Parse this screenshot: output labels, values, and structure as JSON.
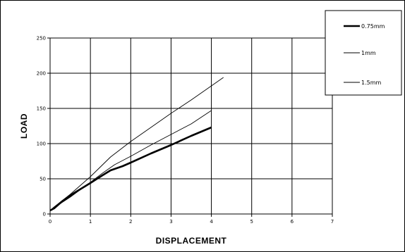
{
  "chart_data": {
    "type": "line",
    "title": "",
    "xlabel": "DISPLACEMENT",
    "ylabel": "LOAD",
    "xlim": [
      0,
      7
    ],
    "ylim": [
      0,
      250
    ],
    "x_ticks": [
      "0",
      "1",
      "2",
      "3",
      "4",
      "5",
      "6",
      "7"
    ],
    "y_ticks": [
      "0",
      "50",
      "100",
      "150",
      "200",
      "250"
    ],
    "grid": true,
    "legend_position": "top-right",
    "series": [
      {
        "name": "0.75mm",
        "color": "#000000",
        "weight": "thick",
        "x": [
          0,
          0.1,
          0.3,
          0.6,
          1.0,
          1.3,
          1.5,
          1.8,
          2.0,
          2.5,
          3.0,
          3.5,
          4.0
        ],
        "y": [
          5,
          8,
          18,
          30,
          44,
          55,
          62,
          68,
          73,
          86,
          98,
          111,
          123
        ]
      },
      {
        "name": "1mm",
        "color": "#000000",
        "weight": "thin",
        "x": [
          0,
          0.1,
          0.5,
          1.0,
          1.3,
          1.6,
          2.0,
          2.5,
          3.0,
          3.5,
          4.0
        ],
        "y": [
          5,
          9,
          24,
          45,
          58,
          70,
          82,
          98,
          113,
          128,
          147
        ]
      },
      {
        "name": "1.5mm",
        "color": "#000000",
        "weight": "thin",
        "x": [
          0,
          0.1,
          0.5,
          1.0,
          1.5,
          2.0,
          2.5,
          3.0,
          3.5,
          4.0,
          4.3
        ],
        "y": [
          5,
          10,
          28,
          53,
          81,
          103,
          123,
          143,
          162,
          182,
          194
        ]
      }
    ]
  }
}
